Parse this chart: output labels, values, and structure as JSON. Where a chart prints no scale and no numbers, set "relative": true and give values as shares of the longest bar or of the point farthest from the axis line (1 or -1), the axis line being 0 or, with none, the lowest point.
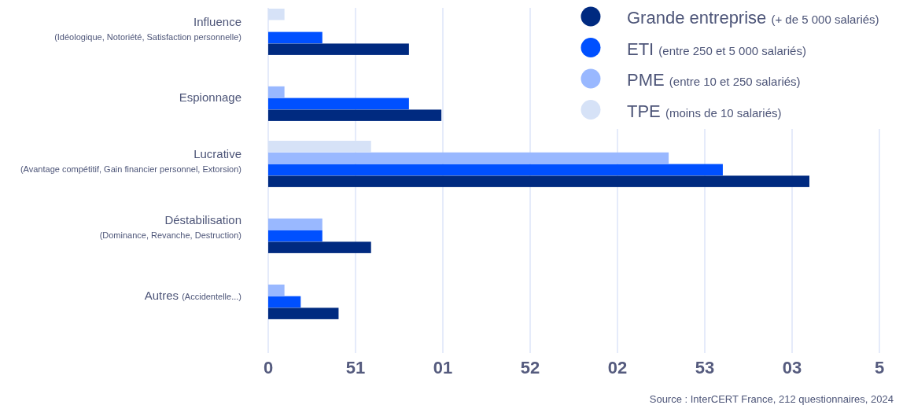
{
  "chart_data": {
    "type": "bar",
    "orientation": "horizontal",
    "relative": true,
    "categories": [
      "Influence\n(Idéologique, Notoriété, Satisfaction personnelle)",
      "Espionnage",
      "Lucrative\n(Avantage compétitif, Gain financier personnel, Extorsion)",
      "Déstabilisation\n(Dominance, Revanche, Destruction)",
      "Autres (Accidentelle...)"
    ],
    "series": [
      {
        "name": "Grande entreprise (+ de 5 000 salariés)",
        "color": "#002a80",
        "values": [
          0.26,
          0.32,
          1,
          0.19,
          0.13
        ]
      },
      {
        "name": "ETI (entre 250 et 5 000 salariés)",
        "color": "#0050ff",
        "values": [
          0.1,
          0.26,
          0.84,
          0.1,
          0.06
        ]
      },
      {
        "name": "PME (entre 10 et 250 salariés)",
        "color": "#99b8ff",
        "values": [
          null,
          0.03,
          0.74,
          0.1,
          0.03
        ]
      },
      {
        "name": "TPE (moins de 10 salariés)",
        "color": "#d6e2f7",
        "values": [
          0.03,
          null,
          0.19,
          null,
          null
        ]
      }
    ],
    "grid": "x",
    "legend": "top right",
    "annotations": [
      "0",
      "51",
      "01",
      "52",
      "02",
      "53",
      "03",
      "5",
      "Source : InterCERT France, 212 questionnaires, 2024"
    ]
  }
}
